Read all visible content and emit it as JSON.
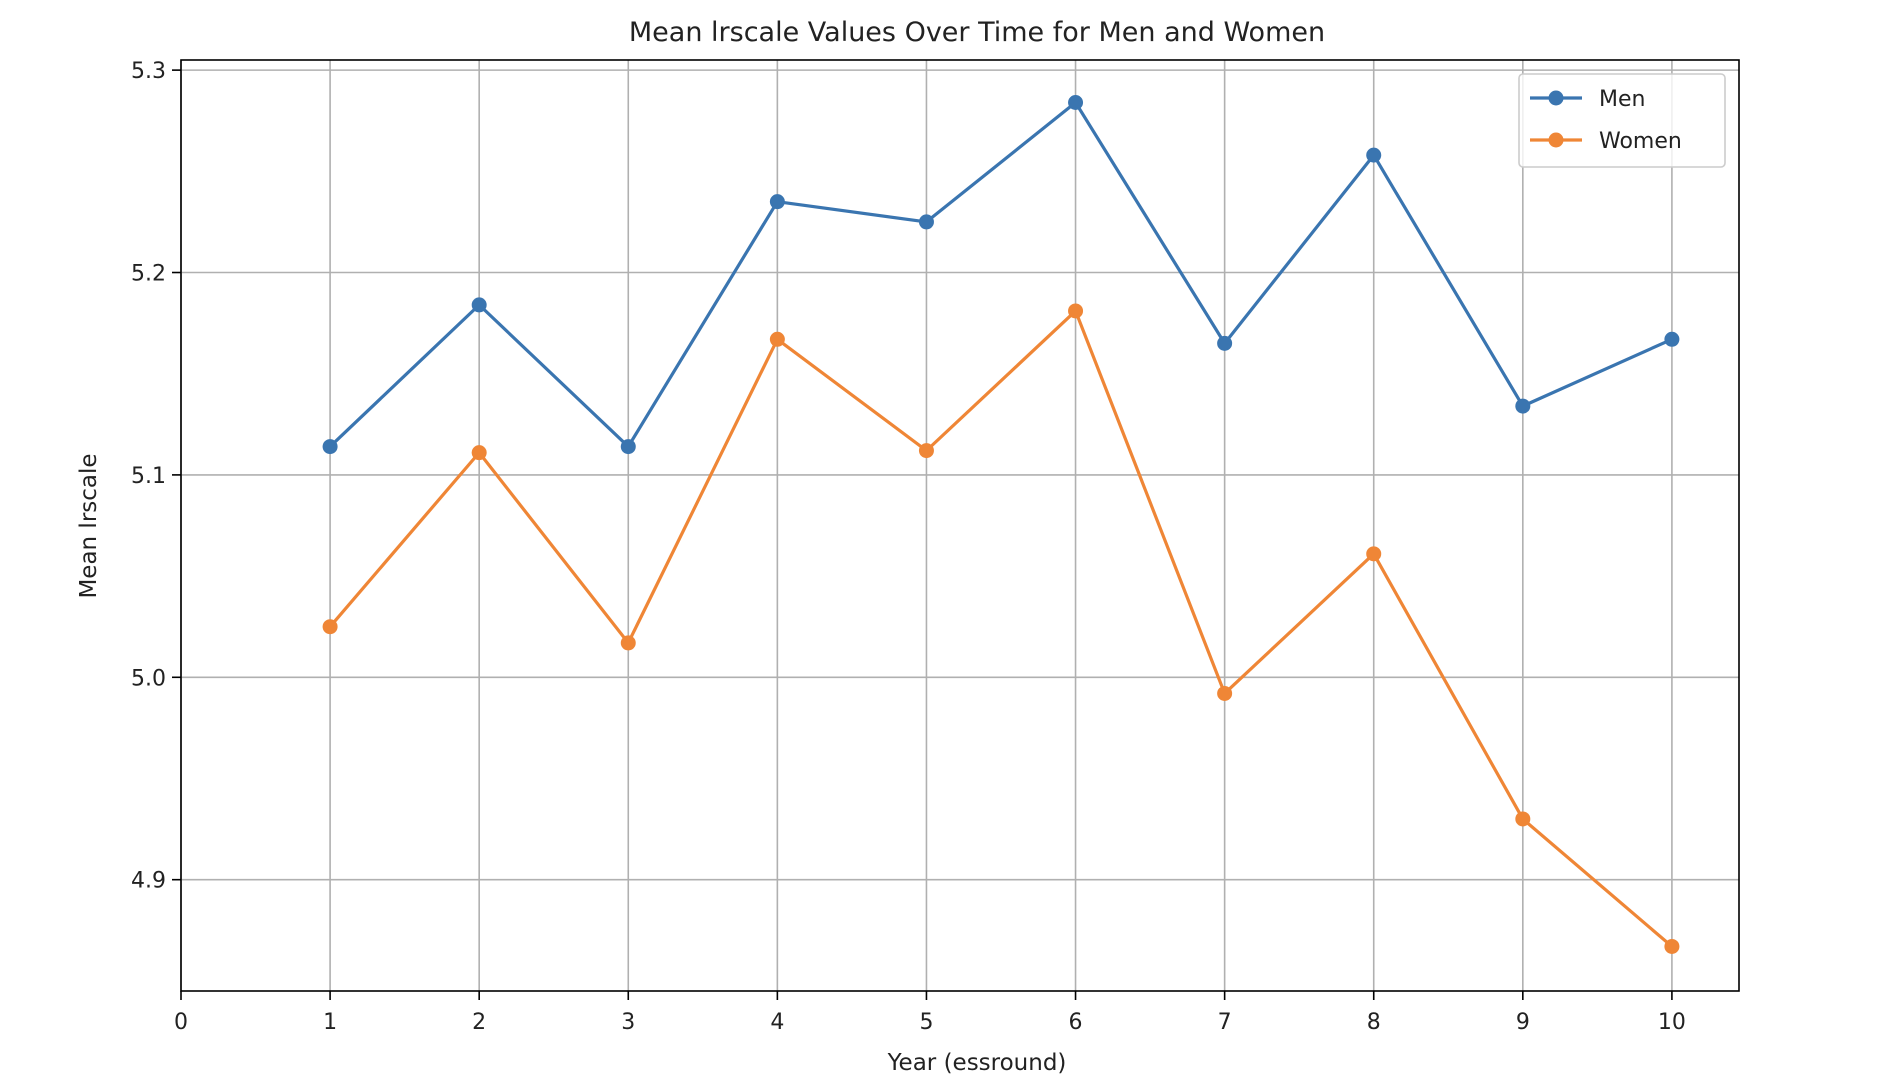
{
  "chart_data": {
    "type": "line",
    "title": "Mean lrscale Values Over Time for Men and Women",
    "xlabel": "Year (essround)",
    "ylabel": "Mean lrscale",
    "x": [
      1,
      2,
      3,
      4,
      5,
      6,
      7,
      8,
      9,
      10
    ],
    "xlim": [
      0,
      10.45
    ],
    "ylim": [
      4.845,
      5.305
    ],
    "xticks": [
      0,
      1,
      2,
      3,
      4,
      5,
      6,
      7,
      8,
      9,
      10
    ],
    "yticks": [
      4.9,
      5.0,
      5.1,
      5.2,
      5.3
    ],
    "ytick_labels": [
      "4.9",
      "5.0",
      "5.1",
      "5.2",
      "5.3"
    ],
    "grid": true,
    "legend_position": "top-right",
    "series": [
      {
        "name": "Men",
        "color": "#3a75b0",
        "marker": "circle",
        "values": [
          5.114,
          5.184,
          5.114,
          5.235,
          5.225,
          5.284,
          5.165,
          5.258,
          5.134,
          5.167
        ]
      },
      {
        "name": "Women",
        "color": "#ef8636",
        "marker": "circle",
        "values": [
          5.025,
          5.111,
          5.017,
          5.167,
          5.112,
          5.181,
          4.992,
          5.061,
          4.93,
          4.867
        ]
      }
    ]
  }
}
